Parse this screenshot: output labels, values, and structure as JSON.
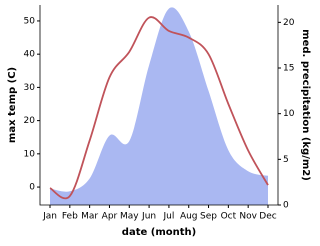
{
  "chart_data": {
    "type": "line-area",
    "x_label": "date (month)",
    "y_label": "max temp (C)",
    "y2_label": "med. precipitation (kg/m2)",
    "categories": [
      "Jan",
      "Feb",
      "Mar",
      "Apr",
      "May",
      "Jun",
      "Jul",
      "Aug",
      "Sep",
      "Oct",
      "Nov",
      "Dec"
    ],
    "ylim": [
      -5.4,
      54.8
    ],
    "yticks": [
      0,
      10,
      20,
      30,
      40,
      50
    ],
    "y2lim": [
      0,
      21.9
    ],
    "y2ticks": [
      0,
      5,
      10,
      15,
      20
    ],
    "series": [
      {
        "name": "med. precipitation",
        "axis": "y2",
        "kind": "area",
        "color": "#aab8f2",
        "values": [
          1.8,
          1.5,
          2.9,
          7.6,
          7.0,
          15.3,
          21.5,
          19.0,
          12.5,
          6.0,
          3.7,
          3.2
        ]
      },
      {
        "name": "max temp",
        "axis": "y",
        "kind": "line",
        "color": "#c0535a",
        "values": [
          -0.3,
          -2.7,
          14,
          33,
          40.7,
          51,
          47,
          45,
          40,
          25,
          11,
          0.6
        ]
      }
    ]
  }
}
